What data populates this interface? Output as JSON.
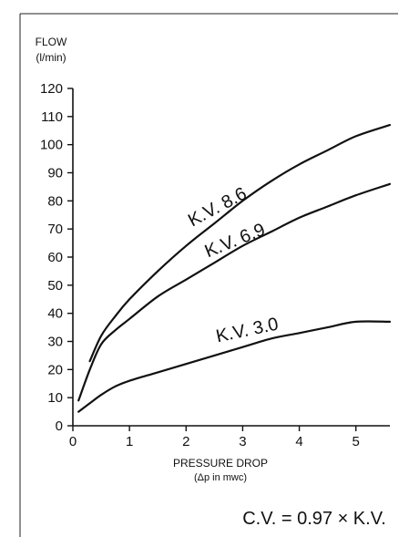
{
  "chart_data": {
    "type": "line",
    "ylabel": "FLOW",
    "ylabel_unit": "(l/min)",
    "xlabel": "PRESSURE DROP",
    "xlabel_unit": "(Δp in mwc)",
    "xlim": [
      0,
      5.6
    ],
    "ylim": [
      0,
      120
    ],
    "x_ticks": [
      "0",
      "1",
      "2",
      "3",
      "4",
      "5"
    ],
    "y_ticks": [
      "0",
      "10",
      "20",
      "30",
      "40",
      "50",
      "60",
      "70",
      "80",
      "90",
      "100",
      "110",
      "120"
    ],
    "grid": false,
    "series": [
      {
        "name": "K.V. 8.6",
        "x": [
          0.3,
          0.5,
          0.75,
          1.0,
          1.5,
          2.0,
          2.5,
          3.0,
          3.5,
          4.0,
          4.5,
          5.0,
          5.6
        ],
        "y": [
          23,
          32,
          39,
          45,
          55,
          64,
          72,
          80,
          87,
          93,
          98,
          103,
          107
        ]
      },
      {
        "name": "K.V. 6.9",
        "x": [
          0.1,
          0.3,
          0.5,
          0.75,
          1.0,
          1.5,
          2.0,
          2.5,
          3.0,
          3.5,
          4.0,
          4.5,
          5.0,
          5.6
        ],
        "y": [
          9,
          20,
          29,
          34,
          38,
          46,
          52,
          58,
          64,
          69,
          74,
          78,
          82,
          86
        ]
      },
      {
        "name": "K.V. 3.0",
        "x": [
          0.1,
          0.3,
          0.5,
          0.75,
          1.0,
          1.5,
          2.0,
          2.5,
          3.0,
          3.5,
          4.0,
          4.5,
          5.0,
          5.6
        ],
        "y": [
          5,
          8,
          11,
          14,
          16,
          19,
          22,
          25,
          28,
          31,
          33,
          35,
          37,
          37
        ]
      }
    ],
    "annotations": [
      {
        "text": "K.V. 8.6",
        "x": 2.6,
        "y": 76,
        "rotate": -28
      },
      {
        "text": "K.V. 6.9",
        "x": 2.9,
        "y": 64,
        "rotate": -22
      },
      {
        "text": "K.V. 3.0",
        "x": 3.1,
        "y": 32,
        "rotate": -12
      }
    ],
    "formula": "C.V. = 0.97 × K.V."
  }
}
